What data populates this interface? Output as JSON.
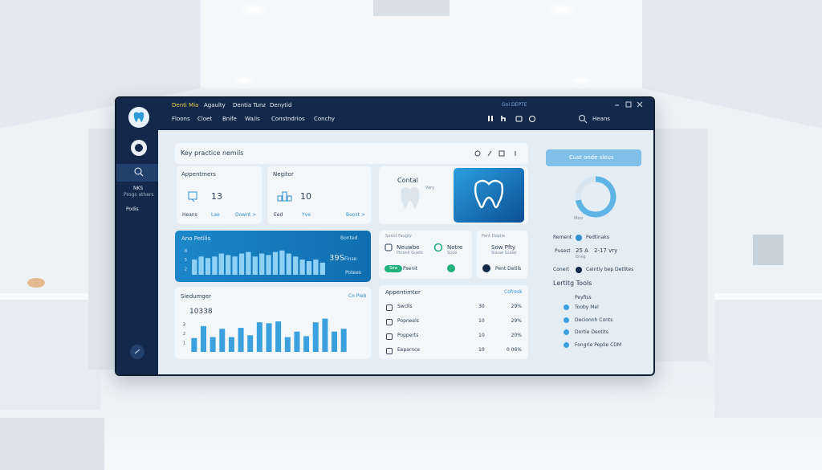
{
  "topbar": {
    "brand": "Denti Mia",
    "menu1": [
      "Agaulty",
      "Dentia Tunz",
      "Denytid"
    ],
    "menu2": [
      "Floons",
      "Cloet",
      "Bnife",
      "Wa/is",
      "Constndrios",
      "Conchy"
    ],
    "status": "Gni DEPTE",
    "user": "Heans"
  },
  "sidebar": {
    "items": [
      "NKS",
      "Progs athers",
      "Podis"
    ]
  },
  "overview": {
    "title": "Key practice nemils",
    "cards": [
      {
        "title": "Appentmers",
        "value": 13,
        "labels": [
          "Heans",
          "Lae",
          "Downt >"
        ]
      },
      {
        "title": "Negitor",
        "value": 10,
        "labels": [
          "Eed",
          "Yve",
          "Boost >"
        ]
      }
    ],
    "promo": {
      "title": "Contal",
      "note": "Vary"
    }
  },
  "trend_chart": {
    "type": "bar",
    "title": "Ano Petilis",
    "status": "Bonted",
    "highlight": "39S",
    "highlight_label": "Finse",
    "footer": "Potees",
    "color": "#8fd0f5",
    "ylim": [
      0,
      9
    ],
    "yticks": [
      2,
      5,
      8
    ],
    "values": [
      5,
      6,
      5.5,
      6,
      7,
      6.5,
      6,
      7,
      7.5,
      6,
      7,
      6.5,
      7.5,
      8,
      7,
      6,
      5,
      4.5,
      5,
      4
    ]
  },
  "usage_chart": {
    "type": "bar",
    "title": "Siedumger",
    "link": "Co Pieb",
    "total": "10338",
    "color": "#3aa0de",
    "ylim": [
      0,
      4
    ],
    "yticks": [
      1,
      2,
      3
    ],
    "values": [
      1.5,
      2.8,
      1.6,
      2.5,
      1.6,
      2.6,
      1.8,
      3.2,
      3.1,
      3.3,
      1.6,
      2.2,
      1.7,
      3.2,
      3.6,
      2.2,
      2.5
    ]
  },
  "quick_cards": [
    {
      "title": "Suent Faugty",
      "label": "Neuwbe",
      "sub": "Pinenll Guets",
      "badge": "Sew"
    },
    {
      "label": "Notre",
      "sub": "Sooe",
      "badge": "Psenit"
    },
    {
      "title": "Pent Doptie",
      "label": "Sow Pfty",
      "sub": "Siaual Guoer",
      "footer": "Pent Detils"
    }
  ],
  "appointments": {
    "title": "Appentimter",
    "link": "Cofresk",
    "rows": [
      [
        "Swclls",
        30,
        "29%"
      ],
      [
        "Popneels",
        10,
        "29%"
      ],
      [
        "Popperts",
        10,
        "20%"
      ],
      [
        "Eeparnce",
        10,
        "0 06%"
      ]
    ]
  },
  "sidepanel": {
    "button": "Cust onde sleus",
    "donut": {
      "type": "pie",
      "values": [
        72,
        28
      ],
      "colors": [
        "#5fb4e6",
        "#d7e6f1"
      ],
      "label": "Mesi"
    },
    "rows": [
      [
        "Rement",
        "Pedtinaks"
      ],
      [
        "Pusest",
        "25 A",
        "2-17 vry",
        "Eneg"
      ],
      [
        "Conert",
        "Ceintiy bep Detlites"
      ]
    ],
    "tools_title": "Lertitg Tools",
    "tools_sub": "Peyfiss",
    "tools": [
      "Tooby Mel",
      "Decionnh Conts",
      "Dortie Deotits",
      "Fongrle Peplie CDM"
    ]
  }
}
